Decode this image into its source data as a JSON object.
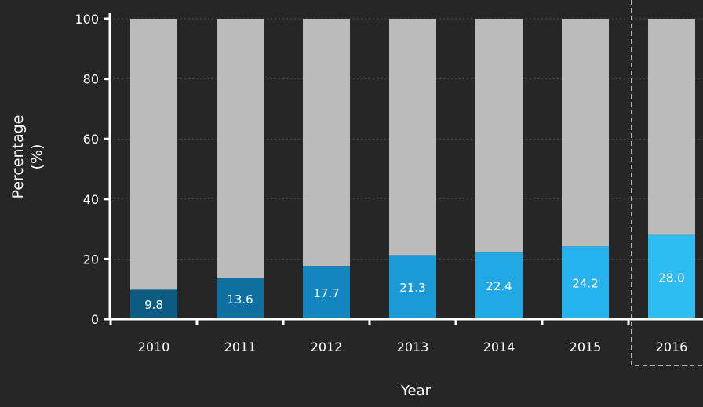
{
  "colors": {
    "background": "#262626",
    "bar_total": "#c3c3c3",
    "axis": "#ffffff",
    "label_text": "#ffffff",
    "value_colors": [
      "#0b5b82",
      "#0f6fa0",
      "#1486bf",
      "#1a9ad6",
      "#21a9e5",
      "#27b4ee",
      "#2ebcf2"
    ]
  },
  "chart_data": {
    "type": "bar",
    "stacked": true,
    "categories": [
      "2010",
      "2011",
      "2012",
      "2013",
      "2014",
      "2015",
      "2016"
    ],
    "series": [
      {
        "values": [
          9.8,
          13.6,
          17.7,
          21.3,
          22.4,
          24.2,
          28.0
        ]
      },
      {
        "values": [
          90.2,
          86.4,
          82.3,
          78.7,
          77.6,
          75.8,
          72.0
        ]
      }
    ],
    "data_labels": [
      "9.8",
      "13.6",
      "17.7",
      "21.3",
      "22.4",
      "24.2",
      "28.0"
    ],
    "ylabel_line1": "Percentage",
    "ylabel_line2": "(%)",
    "xlabel": "Year",
    "ylim": [
      0,
      100
    ],
    "yticks": [
      "0",
      "20",
      "40",
      "60",
      "80",
      "100"
    ],
    "grid": true,
    "highlighted_category": "2016"
  }
}
